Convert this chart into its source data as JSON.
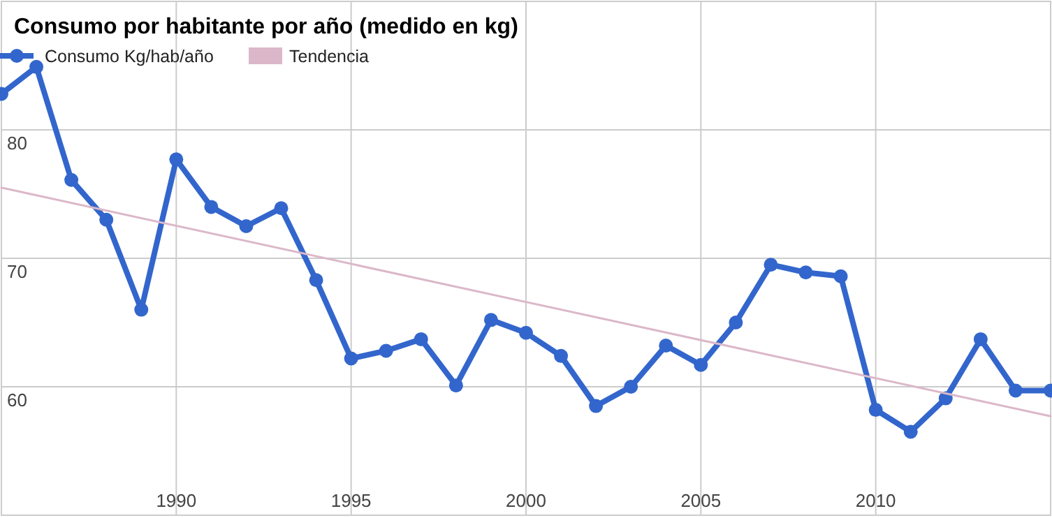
{
  "chart_data": {
    "type": "line",
    "title": "Consumo por habitante por año (medido en kg)",
    "x": [
      1985,
      1986,
      1987,
      1988,
      1989,
      1990,
      1991,
      1992,
      1993,
      1994,
      1995,
      1996,
      1997,
      1998,
      1999,
      2000,
      2001,
      2002,
      2003,
      2004,
      2005,
      2006,
      2007,
      2008,
      2009,
      2010,
      2011,
      2012,
      2013,
      2014,
      2015
    ],
    "series": [
      {
        "name": "Consumo Kg/hab/año",
        "color": "#3366cc",
        "marker": "circle",
        "values": [
          82.8,
          84.9,
          76.1,
          73.0,
          66.0,
          77.7,
          74.0,
          72.5,
          73.9,
          68.3,
          62.2,
          62.8,
          63.7,
          60.1,
          65.2,
          64.2,
          62.4,
          58.5,
          60.0,
          63.2,
          61.7,
          65.0,
          69.5,
          68.9,
          68.6,
          58.2,
          56.5,
          59.1,
          63.7,
          59.7,
          59.7
        ]
      },
      {
        "name": "Tendencia",
        "color": "#dbb8c9",
        "type": "line",
        "marker": "none",
        "x": [
          1985,
          2015
        ],
        "values": [
          75.5,
          57.7
        ]
      }
    ],
    "xlim": [
      1985,
      2015
    ],
    "ylim": [
      50,
      90
    ],
    "xticks": [
      1990,
      1995,
      2000,
      2005,
      2010
    ],
    "yticks": [
      60,
      70,
      80
    ],
    "grid": true,
    "legend": "top left"
  }
}
